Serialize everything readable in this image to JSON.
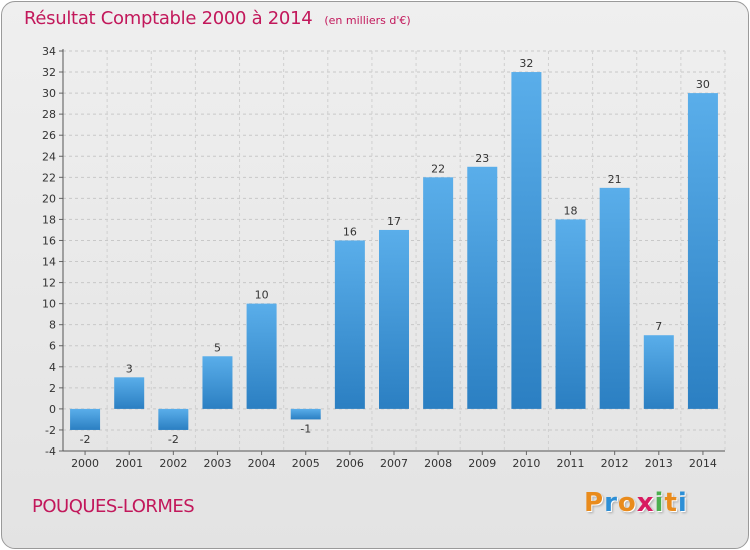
{
  "title": "Résultat Comptable 2000 à 2014",
  "subtitle": "(en milliers d'€)",
  "commune": "POUQUES-LORMES",
  "brand": {
    "letters": [
      "P",
      "r",
      "o",
      "x",
      "i",
      "t",
      "i"
    ],
    "colors": [
      "#e98b1c",
      "#2d8fd6",
      "#e98b1c",
      "#d81b60",
      "#4caf50",
      "#e98b1c",
      "#2d8fd6"
    ]
  },
  "colors": {
    "bar_top": "#5aaeea",
    "bar_bottom": "#2b7fc2",
    "title": "#c2185b"
  },
  "chart_data": {
    "type": "bar",
    "title": "Résultat Comptable 2000 à 2014",
    "xlabel": "",
    "ylabel": "",
    "categories": [
      "2000",
      "2001",
      "2002",
      "2003",
      "2004",
      "2005",
      "2006",
      "2007",
      "2008",
      "2009",
      "2010",
      "2011",
      "2012",
      "2013",
      "2014"
    ],
    "values": [
      -2,
      3,
      -2,
      5,
      10,
      -1,
      16,
      17,
      22,
      23,
      32,
      18,
      21,
      7,
      30
    ],
    "ylim": [
      -4,
      34
    ],
    "yticks": [
      -4,
      -2,
      0,
      2,
      4,
      6,
      8,
      10,
      12,
      14,
      16,
      18,
      20,
      22,
      24,
      26,
      28,
      30,
      32,
      34
    ],
    "grid": true
  }
}
